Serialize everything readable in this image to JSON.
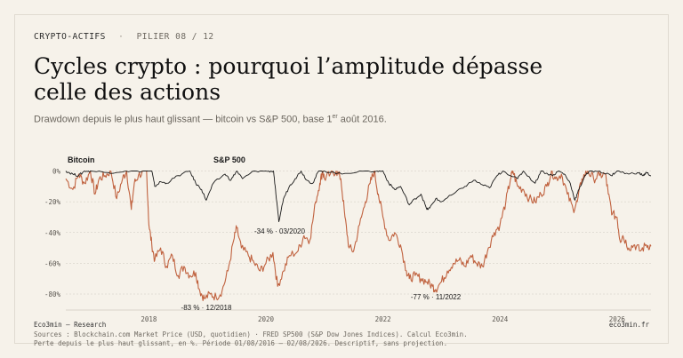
{
  "header": {
    "kicker": "CRYPTO-ACTIFS",
    "kicker_sep": "·",
    "pillar": "PILIER 08 / 12",
    "title_line1": "Cycles crypto : pourquoi l’amplitude dépasse",
    "title_line2": "celle des actions",
    "subtitle_pre": "Drawdown depuis le plus haut glissant — bitcoin vs S&P 500, base 1",
    "subtitle_sup": "er",
    "subtitle_post": " août 2016."
  },
  "footer": {
    "brand": "Eco3min — Research",
    "site": "eco3min.fr",
    "sources": "Sources : Blockchain.com Market Price (USD, quotidien) · FRED SP500 (S&P Dow Jones Indices). Calcul Eco3min.",
    "note": "Perte depuis le plus haut glissant, en %. Période 01/08/2016 – 02/08/2026. Descriptif, sans projection."
  },
  "colors": {
    "bitcoin": "#c0623f",
    "sp500": "#1a1a1a",
    "grid": "#cfcac0",
    "axis_text": "#5a5650"
  },
  "chart_data": {
    "type": "line",
    "title": "",
    "xlabel": "",
    "ylabel": "",
    "xlim": [
      2016.58,
      2026.58
    ],
    "ylim": [
      -85,
      2
    ],
    "y_ticks": [
      0,
      -20,
      -40,
      -60,
      -80
    ],
    "y_tick_labels": [
      "0%",
      "-20%",
      "-40%",
      "-60%",
      "-80%"
    ],
    "x_ticks": [
      2018,
      2020,
      2022,
      2024,
      2026
    ],
    "x_tick_labels": [
      "2018",
      "2020",
      "2022",
      "2024",
      "2026"
    ],
    "grid": true,
    "legend": "direct labels top-left",
    "series": [
      {
        "name": "Bitcoin",
        "color_key": "bitcoin",
        "points": [
          [
            2016.58,
            -5
          ],
          [
            2016.7,
            -12
          ],
          [
            2016.8,
            -2
          ],
          [
            2016.9,
            -8
          ],
          [
            2017.0,
            0
          ],
          [
            2017.08,
            -15
          ],
          [
            2017.15,
            -5
          ],
          [
            2017.25,
            -3
          ],
          [
            2017.35,
            0
          ],
          [
            2017.45,
            -18
          ],
          [
            2017.55,
            -5
          ],
          [
            2017.62,
            0
          ],
          [
            2017.7,
            -25
          ],
          [
            2017.75,
            -8
          ],
          [
            2017.82,
            -3
          ],
          [
            2017.92,
            0
          ],
          [
            2017.96,
            0
          ],
          [
            2018.0,
            -35
          ],
          [
            2018.05,
            -48
          ],
          [
            2018.1,
            -58
          ],
          [
            2018.2,
            -50
          ],
          [
            2018.3,
            -62
          ],
          [
            2018.4,
            -55
          ],
          [
            2018.5,
            -68
          ],
          [
            2018.6,
            -62
          ],
          [
            2018.7,
            -68
          ],
          [
            2018.8,
            -66
          ],
          [
            2018.87,
            -78
          ],
          [
            2018.95,
            -83
          ],
          [
            2019.05,
            -80
          ],
          [
            2019.15,
            -82
          ],
          [
            2019.25,
            -78
          ],
          [
            2019.35,
            -65
          ],
          [
            2019.45,
            -45
          ],
          [
            2019.5,
            -37
          ],
          [
            2019.58,
            -50
          ],
          [
            2019.7,
            -55
          ],
          [
            2019.8,
            -60
          ],
          [
            2019.9,
            -65
          ],
          [
            2020.0,
            -60
          ],
          [
            2020.12,
            -53
          ],
          [
            2020.2,
            -75
          ],
          [
            2020.3,
            -65
          ],
          [
            2020.4,
            -55
          ],
          [
            2020.55,
            -52
          ],
          [
            2020.65,
            -42
          ],
          [
            2020.75,
            -45
          ],
          [
            2020.85,
            -20
          ],
          [
            2020.92,
            -8
          ],
          [
            2020.97,
            0
          ],
          [
            2021.0,
            -5
          ],
          [
            2021.1,
            -2
          ],
          [
            2021.2,
            0
          ],
          [
            2021.28,
            -5
          ],
          [
            2021.35,
            -30
          ],
          [
            2021.42,
            -50
          ],
          [
            2021.5,
            -52
          ],
          [
            2021.6,
            -35
          ],
          [
            2021.7,
            -20
          ],
          [
            2021.78,
            -8
          ],
          [
            2021.85,
            0
          ],
          [
            2021.92,
            -15
          ],
          [
            2022.0,
            -30
          ],
          [
            2022.1,
            -45
          ],
          [
            2022.2,
            -40
          ],
          [
            2022.3,
            -48
          ],
          [
            2022.4,
            -65
          ],
          [
            2022.45,
            -70
          ],
          [
            2022.55,
            -68
          ],
          [
            2022.65,
            -70
          ],
          [
            2022.75,
            -72
          ],
          [
            2022.85,
            -75
          ],
          [
            2022.9,
            -77
          ],
          [
            2023.0,
            -72
          ],
          [
            2023.1,
            -65
          ],
          [
            2023.2,
            -60
          ],
          [
            2023.3,
            -58
          ],
          [
            2023.4,
            -62
          ],
          [
            2023.5,
            -55
          ],
          [
            2023.6,
            -60
          ],
          [
            2023.7,
            -62
          ],
          [
            2023.8,
            -50
          ],
          [
            2023.9,
            -40
          ],
          [
            2024.0,
            -35
          ],
          [
            2024.1,
            -20
          ],
          [
            2024.18,
            -5
          ],
          [
            2024.22,
            0
          ],
          [
            2024.3,
            -10
          ],
          [
            2024.4,
            -12
          ],
          [
            2024.5,
            -18
          ],
          [
            2024.6,
            -20
          ],
          [
            2024.7,
            -15
          ],
          [
            2024.8,
            -10
          ],
          [
            2024.88,
            0
          ],
          [
            2024.95,
            -5
          ],
          [
            2025.05,
            -2
          ],
          [
            2025.15,
            -15
          ],
          [
            2025.25,
            -25
          ],
          [
            2025.32,
            -20
          ],
          [
            2025.4,
            -5
          ],
          [
            2025.5,
            0
          ],
          [
            2025.6,
            -5
          ],
          [
            2025.7,
            -3
          ],
          [
            2025.8,
            -2
          ],
          [
            2025.85,
            -15
          ],
          [
            2025.92,
            -28
          ],
          [
            2026.0,
            -30
          ],
          [
            2026.05,
            -45
          ],
          [
            2026.1,
            -42
          ],
          [
            2026.2,
            -50
          ],
          [
            2026.3,
            -48
          ],
          [
            2026.4,
            -52
          ],
          [
            2026.5,
            -48
          ],
          [
            2026.58,
            -49
          ]
        ]
      },
      {
        "name": "S&P 500",
        "color_key": "sp500",
        "points": [
          [
            2016.58,
            0
          ],
          [
            2016.7,
            -2
          ],
          [
            2016.8,
            -3
          ],
          [
            2016.9,
            0
          ],
          [
            2017.0,
            0
          ],
          [
            2017.3,
            -1
          ],
          [
            2017.6,
            0
          ],
          [
            2017.9,
            0
          ],
          [
            2018.05,
            0
          ],
          [
            2018.1,
            -10
          ],
          [
            2018.2,
            -7
          ],
          [
            2018.3,
            -8
          ],
          [
            2018.5,
            -3
          ],
          [
            2018.7,
            0
          ],
          [
            2018.8,
            -8
          ],
          [
            2018.9,
            -12
          ],
          [
            2018.98,
            -19
          ],
          [
            2019.1,
            -8
          ],
          [
            2019.3,
            -2
          ],
          [
            2019.4,
            -6
          ],
          [
            2019.5,
            0
          ],
          [
            2019.6,
            -5
          ],
          [
            2019.8,
            0
          ],
          [
            2020.0,
            0
          ],
          [
            2020.13,
            0
          ],
          [
            2020.17,
            -15
          ],
          [
            2020.22,
            -33
          ],
          [
            2020.3,
            -18
          ],
          [
            2020.4,
            -10
          ],
          [
            2020.5,
            -5
          ],
          [
            2020.6,
            0
          ],
          [
            2020.7,
            -6
          ],
          [
            2020.8,
            -8
          ],
          [
            2020.9,
            0
          ],
          [
            2021.0,
            0
          ],
          [
            2021.3,
            -2
          ],
          [
            2021.6,
            0
          ],
          [
            2021.9,
            0
          ],
          [
            2022.0,
            0
          ],
          [
            2022.1,
            -8
          ],
          [
            2022.2,
            -12
          ],
          [
            2022.3,
            -10
          ],
          [
            2022.45,
            -22
          ],
          [
            2022.55,
            -18
          ],
          [
            2022.65,
            -15
          ],
          [
            2022.75,
            -25
          ],
          [
            2022.8,
            -24
          ],
          [
            2022.9,
            -18
          ],
          [
            2023.0,
            -20
          ],
          [
            2023.2,
            -15
          ],
          [
            2023.4,
            -10
          ],
          [
            2023.55,
            -6
          ],
          [
            2023.7,
            -9
          ],
          [
            2023.82,
            -11
          ],
          [
            2023.95,
            -3
          ],
          [
            2024.05,
            0
          ],
          [
            2024.3,
            -5
          ],
          [
            2024.4,
            0
          ],
          [
            2024.6,
            -8
          ],
          [
            2024.7,
            0
          ],
          [
            2024.9,
            -3
          ],
          [
            2025.0,
            0
          ],
          [
            2025.1,
            -2
          ],
          [
            2025.2,
            -8
          ],
          [
            2025.28,
            -19
          ],
          [
            2025.35,
            -12
          ],
          [
            2025.45,
            -3
          ],
          [
            2025.55,
            0
          ],
          [
            2025.7,
            0
          ],
          [
            2025.9,
            -3
          ],
          [
            2026.0,
            0
          ],
          [
            2026.2,
            -2
          ],
          [
            2026.35,
            -1
          ],
          [
            2026.45,
            -3
          ],
          [
            2026.5,
            -1
          ],
          [
            2026.58,
            -3
          ]
        ]
      }
    ],
    "series_labels": [
      {
        "text": "Bitcoin",
        "anchor_x": 2016.58,
        "anchor_y": 5
      },
      {
        "text": "S&P 500",
        "anchor_x": 2017.7,
        "anchor_y": 5
      }
    ],
    "annotations": [
      {
        "text": "-34 % · 03/2020",
        "x": 2020.22,
        "y": -33,
        "align": "right-of-point"
      },
      {
        "text": "-83 % · 12/2018",
        "x": 2018.95,
        "y": -83,
        "align": "below"
      },
      {
        "text": "-77 % · 11/2022",
        "x": 2022.9,
        "y": -77,
        "align": "below"
      }
    ]
  }
}
